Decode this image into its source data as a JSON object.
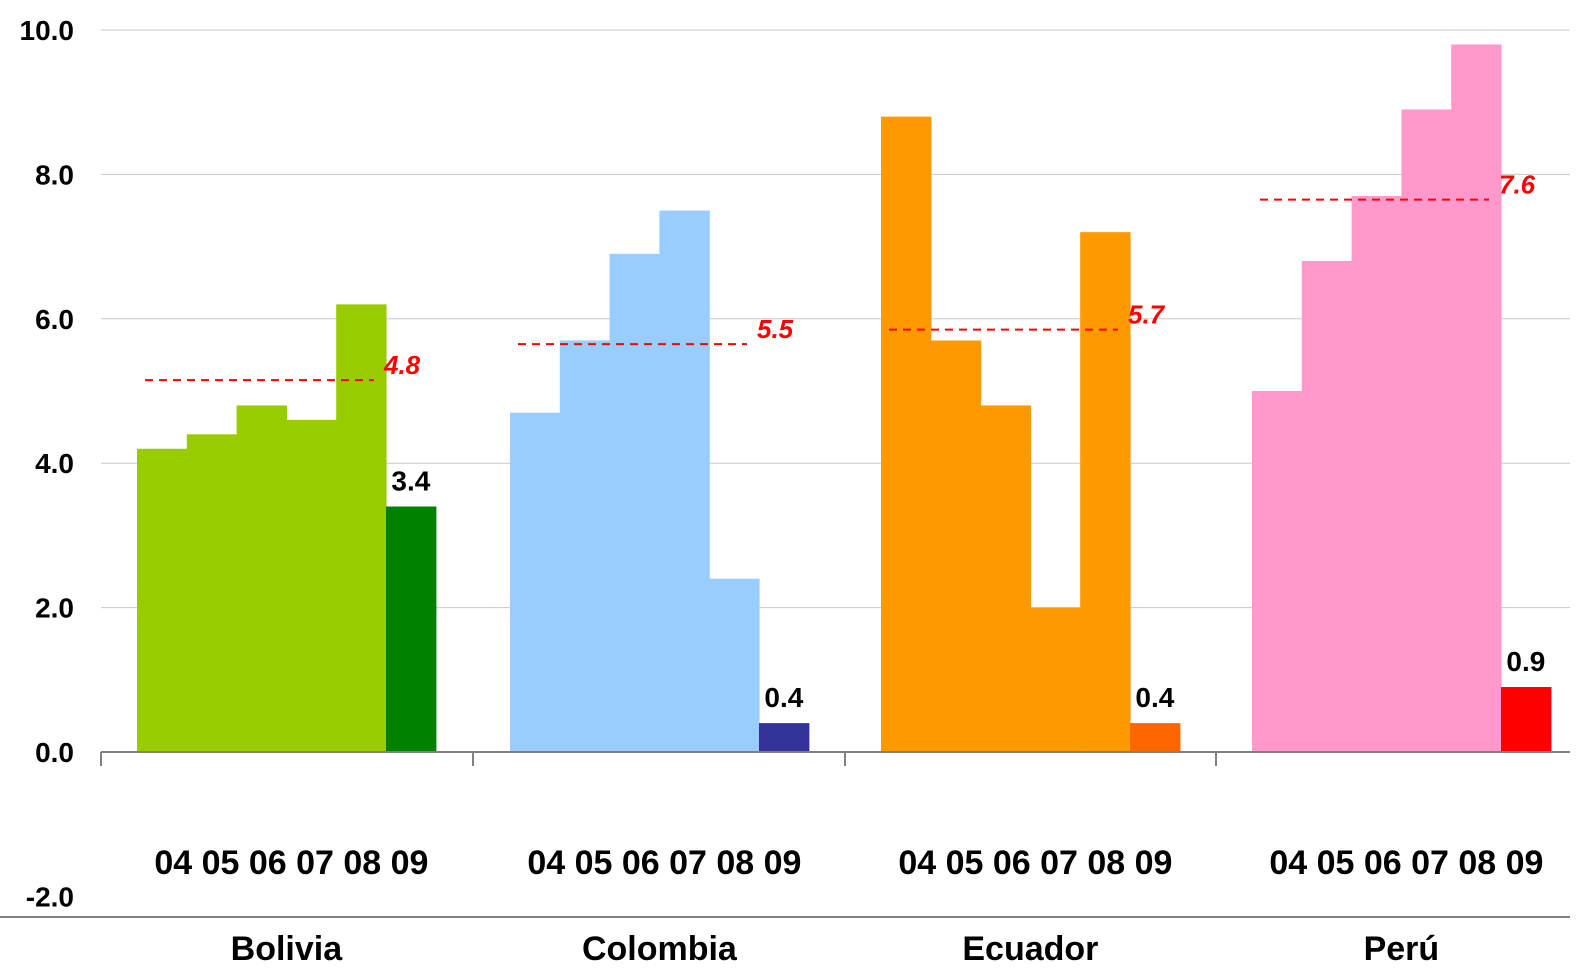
{
  "chart_data": {
    "type": "bar",
    "ylim": [
      -2,
      10
    ],
    "yticks": [
      "10.0",
      "8.0",
      "6.0",
      "4.0",
      "2.0",
      "0.0",
      "-2.0"
    ],
    "grid": true,
    "year_labels": "04 05 06 07 08 09",
    "groups": [
      {
        "name": "Bolivia",
        "years": [
          "04",
          "05",
          "06",
          "07",
          "08",
          "09"
        ],
        "values": [
          4.2,
          4.4,
          4.8,
          4.6,
          6.2,
          3.4
        ],
        "colors": [
          "#99cc00",
          "#99cc00",
          "#99cc00",
          "#99cc00",
          "#99cc00",
          "#008000"
        ],
        "average": 4.8,
        "average_line_y": 5.15,
        "highlight_label": "3.4",
        "average_label": "4.8"
      },
      {
        "name": "Colombia",
        "years": [
          "04",
          "05",
          "06",
          "07",
          "08",
          "09"
        ],
        "values": [
          4.7,
          5.7,
          6.9,
          7.5,
          2.4,
          0.4
        ],
        "colors": [
          "#99ccff",
          "#99ccff",
          "#99ccff",
          "#99ccff",
          "#99ccff",
          "#333399"
        ],
        "average": 5.5,
        "average_line_y": 5.65,
        "highlight_label": "0.4",
        "average_label": "5.5"
      },
      {
        "name": "Ecuador",
        "years": [
          "04",
          "05",
          "06",
          "07",
          "08",
          "09"
        ],
        "values": [
          8.8,
          5.7,
          4.8,
          2.0,
          7.2,
          0.4
        ],
        "colors": [
          "#ff9900",
          "#ff9900",
          "#ff9900",
          "#ff9900",
          "#ff9900",
          "#ff6600"
        ],
        "average": 5.7,
        "average_line_y": 5.85,
        "highlight_label": "0.4",
        "average_label": "5.7"
      },
      {
        "name": "Perú",
        "years": [
          "04",
          "05",
          "06",
          "07",
          "08",
          "09"
        ],
        "values": [
          5.0,
          6.8,
          7.7,
          8.9,
          9.8,
          0.9
        ],
        "colors": [
          "#ff99cc",
          "#ff99cc",
          "#ff99cc",
          "#ff99cc",
          "#ff99cc",
          "#ff0000"
        ],
        "average": 7.6,
        "average_line_y": 7.65,
        "highlight_label": "0.9",
        "average_label": "7.6"
      }
    ]
  }
}
